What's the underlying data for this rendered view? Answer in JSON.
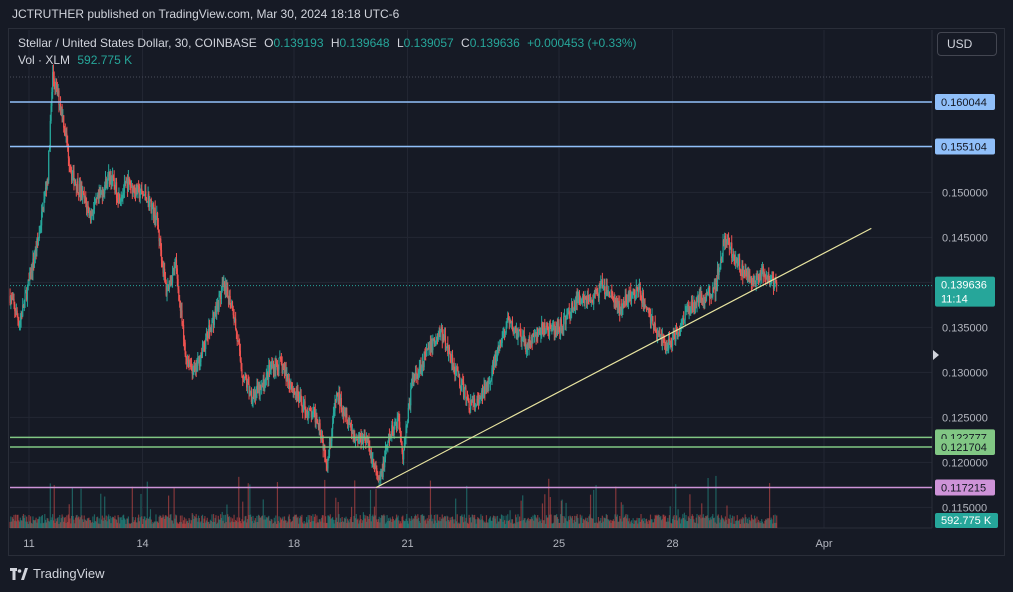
{
  "header": {
    "published_text": "JCTRUTHER published on TradingView.com, Mar 30, 2024 18:18 UTC-6"
  },
  "legend": {
    "symbol": "Stellar / United States Dollar, 30, COINBASE",
    "open_label": "O",
    "open_value": "0.139193",
    "high_label": "H",
    "high_value": "0.139648",
    "low_label": "L",
    "low_value": "0.139057",
    "close_label": "C",
    "close_value": "0.139636",
    "change_value": "+0.000453 (+0.33%)",
    "volume_label": "Vol · XLM",
    "volume_value": "592.775 K"
  },
  "currency_button": {
    "label": "USD"
  },
  "footer": {
    "brand": "TradingView"
  },
  "colors": {
    "background": "#161a25",
    "up": "#26a69a",
    "down": "#ef5350",
    "resistance_line": "#90bff9",
    "support_line": "#81c784",
    "purple_line": "#ce93d8",
    "trend_line": "#e8e4a0",
    "grid": "#232733"
  },
  "chart_data": {
    "type": "candlestick",
    "x_axis": {
      "tick_labels": [
        "11",
        "14",
        "18",
        "21",
        "25",
        "28",
        "Apr"
      ],
      "tick_dates": [
        "2024-03-11",
        "2024-03-14",
        "2024-03-18",
        "2024-03-21",
        "2024-03-25",
        "2024-03-28",
        "2024-04-01"
      ]
    },
    "y_axis": {
      "tick_labels": [
        "0.150000",
        "0.145000",
        "0.135000",
        "0.130000",
        "0.125000",
        "0.120000",
        "0.115000"
      ],
      "range": [
        0.1125,
        0.166
      ],
      "position": "right"
    },
    "price_path": [
      [
        "2024-03-10 12:00",
        0.1385
      ],
      [
        "2024-03-10 18:00",
        0.1355
      ],
      [
        "2024-03-11 00:00",
        0.14
      ],
      [
        "2024-03-11 06:00",
        0.145
      ],
      [
        "2024-03-11 12:00",
        0.152
      ],
      [
        "2024-03-11 15:00",
        0.163
      ],
      [
        "2024-03-11 21:00",
        0.159
      ],
      [
        "2024-03-12 03:00",
        0.152
      ],
      [
        "2024-03-12 09:00",
        0.15
      ],
      [
        "2024-03-12 15:00",
        0.1475
      ],
      [
        "2024-03-12 21:00",
        0.1495
      ],
      [
        "2024-03-13 03:00",
        0.152
      ],
      [
        "2024-03-13 09:00",
        0.1495
      ],
      [
        "2024-03-13 15:00",
        0.151
      ],
      [
        "2024-03-13 21:00",
        0.15
      ],
      [
        "2024-03-14 03:00",
        0.1495
      ],
      [
        "2024-03-14 09:00",
        0.147
      ],
      [
        "2024-03-14 15:00",
        0.139
      ],
      [
        "2024-03-14 21:00",
        0.142
      ],
      [
        "2024-03-15 03:00",
        0.132
      ],
      [
        "2024-03-15 09:00",
        0.13
      ],
      [
        "2024-03-15 15:00",
        0.133
      ],
      [
        "2024-03-15 21:00",
        0.136
      ],
      [
        "2024-03-16 03:00",
        0.1395
      ],
      [
        "2024-03-16 09:00",
        0.1375
      ],
      [
        "2024-03-16 15:00",
        0.13
      ],
      [
        "2024-03-16 21:00",
        0.1275
      ],
      [
        "2024-03-17 03:00",
        0.128
      ],
      [
        "2024-03-17 09:00",
        0.1305
      ],
      [
        "2024-03-17 15:00",
        0.131
      ],
      [
        "2024-03-17 21:00",
        0.129
      ],
      [
        "2024-03-18 03:00",
        0.127
      ],
      [
        "2024-03-18 09:00",
        0.1255
      ],
      [
        "2024-03-18 15:00",
        0.125
      ],
      [
        "2024-03-18 21:00",
        0.12
      ],
      [
        "2024-03-19 03:00",
        0.1275
      ],
      [
        "2024-03-19 09:00",
        0.1255
      ],
      [
        "2024-03-19 15:00",
        0.1225
      ],
      [
        "2024-03-19 21:00",
        0.123
      ],
      [
        "2024-03-20 03:00",
        0.1195
      ],
      [
        "2024-03-20 06:00",
        0.1175
      ],
      [
        "2024-03-20 12:00",
        0.1225
      ],
      [
        "2024-03-20 18:00",
        0.125
      ],
      [
        "2024-03-20 21:00",
        0.121
      ],
      [
        "2024-03-21 03:00",
        0.129
      ],
      [
        "2024-03-21 09:00",
        0.131
      ],
      [
        "2024-03-21 15:00",
        0.133
      ],
      [
        "2024-03-21 21:00",
        0.1345
      ],
      [
        "2024-03-22 03:00",
        0.132
      ],
      [
        "2024-03-22 09:00",
        0.129
      ],
      [
        "2024-03-22 15:00",
        0.1265
      ],
      [
        "2024-03-22 21:00",
        0.1265
      ],
      [
        "2024-03-23 03:00",
        0.129
      ],
      [
        "2024-03-23 09:00",
        0.132
      ],
      [
        "2024-03-23 15:00",
        0.1355
      ],
      [
        "2024-03-23 21:00",
        0.1345
      ],
      [
        "2024-03-24 03:00",
        0.133
      ],
      [
        "2024-03-24 09:00",
        0.134
      ],
      [
        "2024-03-24 15:00",
        0.135
      ],
      [
        "2024-03-24 21:00",
        0.1345
      ],
      [
        "2024-03-25 03:00",
        0.1355
      ],
      [
        "2024-03-25 09:00",
        0.1375
      ],
      [
        "2024-03-25 15:00",
        0.1385
      ],
      [
        "2024-03-25 21:00",
        0.138
      ],
      [
        "2024-03-26 03:00",
        0.1395
      ],
      [
        "2024-03-26 09:00",
        0.1385
      ],
      [
        "2024-03-26 15:00",
        0.137
      ],
      [
        "2024-03-26 21:00",
        0.1385
      ],
      [
        "2024-03-27 03:00",
        0.139
      ],
      [
        "2024-03-27 09:00",
        0.1365
      ],
      [
        "2024-03-27 15:00",
        0.134
      ],
      [
        "2024-03-27 21:00",
        0.133
      ],
      [
        "2024-03-28 03:00",
        0.1345
      ],
      [
        "2024-03-28 09:00",
        0.137
      ],
      [
        "2024-03-28 15:00",
        0.138
      ],
      [
        "2024-03-28 21:00",
        0.1385
      ],
      [
        "2024-03-29 03:00",
        0.1395
      ],
      [
        "2024-03-29 06:00",
        0.142
      ],
      [
        "2024-03-29 09:00",
        0.145
      ],
      [
        "2024-03-29 15:00",
        0.143
      ],
      [
        "2024-03-29 21:00",
        0.141
      ],
      [
        "2024-03-30 03:00",
        0.14
      ],
      [
        "2024-03-30 09:00",
        0.141
      ],
      [
        "2024-03-30 15:00",
        0.14
      ],
      [
        "2024-03-30 18:00",
        0.1396
      ]
    ],
    "horizontal_levels": [
      {
        "price": 0.160044,
        "label": "0.160044",
        "color": "#90bff9"
      },
      {
        "price": 0.155104,
        "label": "0.155104",
        "color": "#90bff9"
      },
      {
        "price": 0.122777,
        "label": "0.122777",
        "color": "#81c784"
      },
      {
        "price": 0.121704,
        "label": "0.121704",
        "color": "#81c784"
      },
      {
        "price": 0.117215,
        "label": "0.117215",
        "color": "#ce93d8"
      }
    ],
    "trend_line": [
      [
        "2024-03-20 04:00",
        0.1172
      ],
      [
        "2024-04-02 06:00",
        0.146
      ]
    ],
    "last_price": {
      "price": 0.139636,
      "label": "0.139636",
      "countdown": "11:14",
      "color": "#26a69a"
    },
    "volume_badge": {
      "label": "592.775 K",
      "color": "#26a69a"
    }
  }
}
